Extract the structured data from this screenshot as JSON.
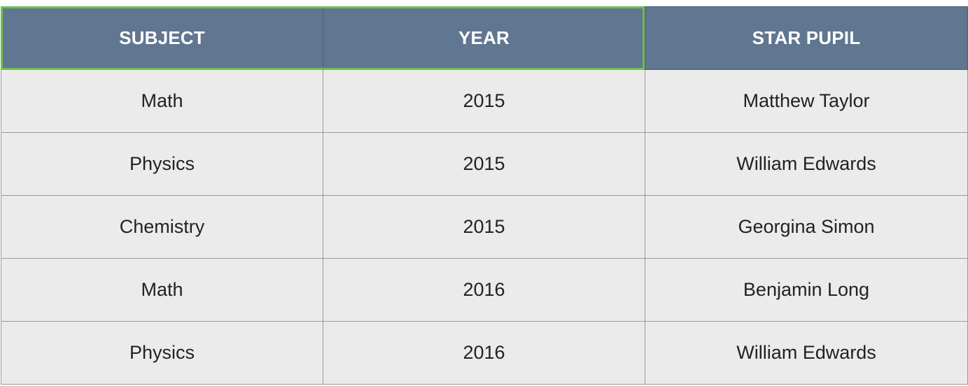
{
  "table": {
    "headers": [
      "SUBJECT",
      "YEAR",
      "STAR PUPIL"
    ],
    "rows": [
      [
        "Math",
        "2015",
        "Matthew Taylor"
      ],
      [
        "Physics",
        "2015",
        "William Edwards"
      ],
      [
        "Chemistry",
        "2015",
        "Georgina Simon"
      ],
      [
        "Math",
        "2016",
        "Benjamin Long"
      ],
      [
        "Physics",
        "2016",
        "William Edwards"
      ]
    ]
  },
  "colors": {
    "header_background": "#607691",
    "header_text": "#ffffff",
    "cell_background": "#ebebeb",
    "selection_outline": "#6fbe4f"
  }
}
